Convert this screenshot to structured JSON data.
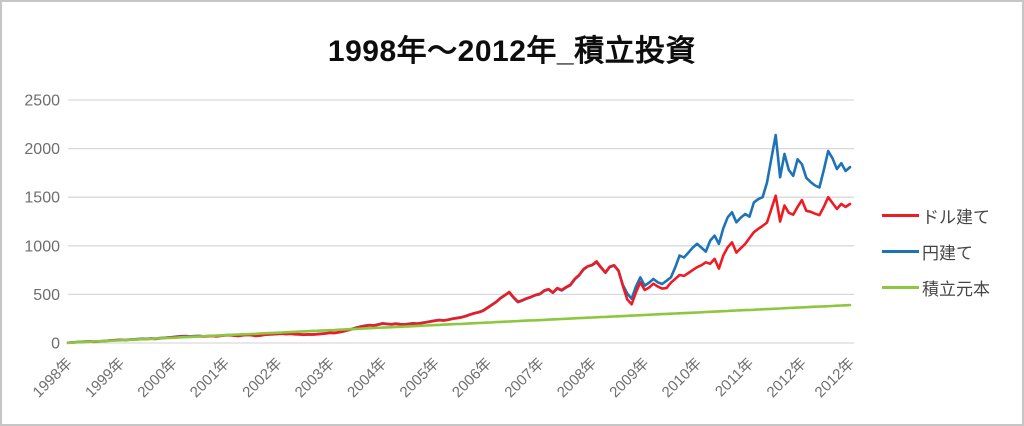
{
  "frame": {
    "background": "#ffffff",
    "border_color": "#c6c6c6"
  },
  "axis": {
    "label_color": "#6e6e6e",
    "grid_color": "#d9d9d9"
  },
  "chart_data": {
    "type": "line",
    "title": "1998年～2012年_積立投資",
    "xlabel": "",
    "ylabel": "",
    "ylim": [
      0,
      2500
    ],
    "y_ticks": [
      0,
      500,
      1000,
      1500,
      2000,
      2500
    ],
    "grid": true,
    "legend_position": "right",
    "n_points": 180,
    "x_tick_labels": [
      "1998年",
      "1999年",
      "2000年",
      "2001年",
      "2002年",
      "2003年",
      "2004年",
      "2005年",
      "2006年",
      "2007年",
      "2008年",
      "2009年",
      "2010年",
      "2011年",
      "2012年",
      "2012年"
    ],
    "x_tick_indices": [
      0,
      12,
      24,
      36,
      48,
      60,
      72,
      84,
      96,
      108,
      120,
      132,
      144,
      156,
      168,
      179
    ],
    "series": [
      {
        "key": "dollar",
        "name": "ドル建て",
        "color": "#ed1c24",
        "values": [
          2,
          5,
          8,
          10,
          13,
          14,
          12,
          16,
          19,
          23,
          26,
          29,
          31,
          29,
          33,
          36,
          38,
          41,
          40,
          44,
          42,
          47,
          52,
          56,
          58,
          62,
          65,
          68,
          64,
          67,
          70,
          66,
          69,
          72,
          68,
          74,
          78,
          80,
          76,
          73,
          79,
          83,
          80,
          72,
          76,
          84,
          88,
          90,
          94,
          96,
          92,
          95,
          90,
          87,
          84,
          88,
          86,
          90,
          94,
          98,
          105,
          102,
          110,
          118,
          130,
          142,
          155,
          168,
          175,
          182,
          178,
          188,
          200,
          195,
          190,
          198,
          192,
          188,
          195,
          200,
          198,
          205,
          212,
          220,
          228,
          235,
          230,
          238,
          248,
          255,
          262,
          275,
          290,
          305,
          315,
          330,
          360,
          390,
          420,
          460,
          490,
          525,
          470,
          425,
          440,
          460,
          475,
          495,
          505,
          540,
          555,
          520,
          565,
          545,
          575,
          600,
          660,
          700,
          760,
          790,
          805,
          840,
          780,
          725,
          785,
          800,
          745,
          590,
          450,
          398,
          520,
          625,
          545,
          570,
          610,
          580,
          560,
          565,
          620,
          660,
          700,
          690,
          720,
          750,
          780,
          800,
          830,
          815,
          865,
          765,
          900,
          985,
          1035,
          930,
          975,
          1020,
          1080,
          1140,
          1175,
          1205,
          1240,
          1380,
          1515,
          1250,
          1415,
          1340,
          1320,
          1400,
          1470,
          1360,
          1350,
          1330,
          1315,
          1400,
          1500,
          1440,
          1380,
          1430,
          1400,
          1430
        ]
      },
      {
        "key": "yen",
        "name": "円建て",
        "color": "#1e73b8",
        "values": [
          2,
          6,
          9,
          12,
          14,
          16,
          14,
          18,
          21,
          24,
          28,
          30,
          33,
          31,
          35,
          38,
          41,
          44,
          43,
          47,
          45,
          50,
          54,
          58,
          61,
          66,
          70,
          72,
          68,
          71,
          73,
          69,
          71,
          74,
          70,
          76,
          80,
          82,
          78,
          74,
          80,
          85,
          82,
          74,
          78,
          86,
          90,
          92,
          95,
          97,
          94,
          97,
          92,
          89,
          86,
          90,
          88,
          92,
          96,
          100,
          107,
          104,
          112,
          120,
          133,
          145,
          158,
          170,
          178,
          185,
          181,
          191,
          203,
          198,
          193,
          201,
          195,
          191,
          198,
          203,
          201,
          208,
          215,
          223,
          231,
          238,
          233,
          241,
          251,
          258,
          265,
          278,
          293,
          308,
          318,
          334,
          364,
          394,
          424,
          464,
          494,
          520,
          465,
          420,
          436,
          457,
          472,
          492,
          502,
          536,
          550,
          516,
          560,
          540,
          570,
          595,
          655,
          695,
          755,
          788,
          800,
          830,
          775,
          722,
          780,
          795,
          742,
          600,
          510,
          455,
          580,
          675,
          590,
          620,
          658,
          625,
          607,
          640,
          675,
          780,
          900,
          880,
          930,
          980,
          1020,
          980,
          940,
          1053,
          1105,
          1020,
          1180,
          1293,
          1345,
          1242,
          1290,
          1327,
          1300,
          1447,
          1480,
          1500,
          1650,
          1900,
          2140,
          1705,
          1945,
          1780,
          1720,
          1890,
          1840,
          1700,
          1655,
          1620,
          1600,
          1780,
          1975,
          1900,
          1790,
          1850,
          1770,
          1810
        ]
      },
      {
        "key": "principal",
        "name": "積立元本",
        "color": "#8dc63f",
        "values": [
          2,
          4,
          7,
          9,
          11,
          13,
          15,
          17,
          20,
          22,
          24,
          26,
          28,
          30,
          33,
          35,
          37,
          39,
          41,
          43,
          46,
          48,
          50,
          52,
          54,
          56,
          59,
          61,
          63,
          65,
          67,
          69,
          72,
          74,
          76,
          78,
          80,
          82,
          85,
          87,
          89,
          91,
          93,
          95,
          98,
          100,
          102,
          104,
          106,
          108,
          111,
          113,
          115,
          117,
          119,
          121,
          124,
          126,
          128,
          130,
          132,
          134,
          137,
          139,
          141,
          143,
          145,
          147,
          150,
          152,
          154,
          156,
          158,
          160,
          163,
          165,
          167,
          169,
          171,
          173,
          176,
          178,
          180,
          182,
          184,
          186,
          189,
          191,
          193,
          195,
          197,
          199,
          202,
          204,
          206,
          208,
          210,
          212,
          215,
          217,
          219,
          221,
          223,
          225,
          228,
          230,
          232,
          234,
          236,
          238,
          241,
          243,
          245,
          247,
          249,
          251,
          254,
          256,
          258,
          260,
          262,
          264,
          267,
          269,
          271,
          273,
          275,
          277,
          280,
          282,
          284,
          286,
          288,
          290,
          293,
          295,
          297,
          299,
          301,
          303,
          306,
          308,
          310,
          312,
          314,
          316,
          319,
          321,
          323,
          325,
          327,
          329,
          332,
          334,
          336,
          338,
          340,
          342,
          345,
          347,
          349,
          351,
          353,
          355,
          358,
          360,
          362,
          364,
          366,
          368,
          371,
          373,
          375,
          377,
          379,
          381,
          384,
          386,
          388,
          390
        ]
      }
    ]
  },
  "legend": {
    "items": [
      "ドル建て",
      "円建て",
      "積立元本"
    ]
  }
}
